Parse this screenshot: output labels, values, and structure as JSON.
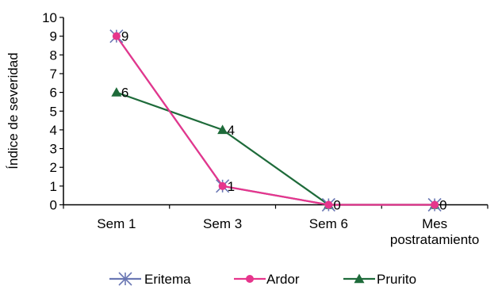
{
  "chart_data": {
    "type": "line",
    "title": "",
    "xlabel": "",
    "ylabel": "Índice de severidad",
    "categories": [
      [
        "Sem 1"
      ],
      [
        "Sem 3"
      ],
      [
        "Sem 6"
      ],
      [
        "Mes",
        "postratamiento"
      ]
    ],
    "ylim": [
      0,
      10
    ],
    "yticks": [
      0,
      1,
      2,
      3,
      4,
      5,
      6,
      7,
      8,
      9,
      10
    ],
    "grid": false,
    "legend_position": "bottom",
    "series": [
      {
        "name": "Eritema",
        "values": [
          9,
          1,
          0,
          0
        ],
        "color": "#6B78B4",
        "marker": "asterisk"
      },
      {
        "name": "Ardor",
        "values": [
          9,
          1,
          0,
          0
        ],
        "color": "#E6358C",
        "marker": "circle"
      },
      {
        "name": "Prurito",
        "values": [
          6,
          4,
          0,
          0
        ],
        "color": "#1E6B3A",
        "marker": "triangle"
      }
    ],
    "data_labels": [
      {
        "category": 0,
        "value": 9,
        "text": "9"
      },
      {
        "category": 0,
        "value": 6,
        "text": "6"
      },
      {
        "category": 1,
        "value": 4,
        "text": "4"
      },
      {
        "category": 1,
        "value": 1,
        "text": "1"
      },
      {
        "category": 2,
        "value": 0,
        "text": "0"
      },
      {
        "category": 3,
        "value": 0,
        "text": "0"
      }
    ]
  }
}
